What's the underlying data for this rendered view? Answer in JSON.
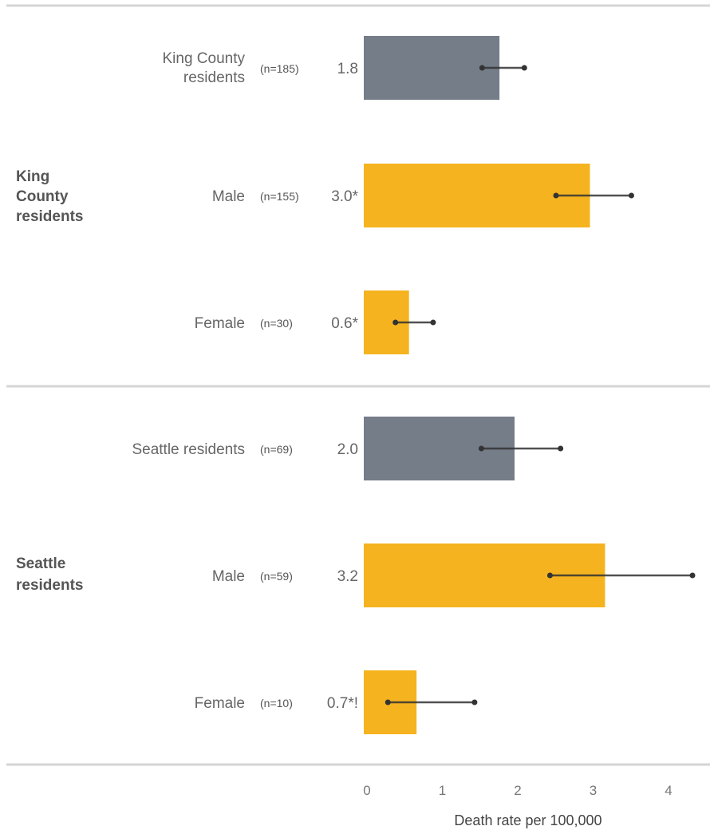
{
  "chart_data": {
    "type": "bar",
    "orientation": "horizontal",
    "xlabel": "Death rate per 100,000",
    "xlim": [
      0,
      4.4
    ],
    "xticks": [
      0,
      1,
      2,
      3,
      4
    ],
    "grid": false,
    "colors": {
      "total": "#757d89",
      "subgroup": "#f5b31f",
      "error_bar": "#333333",
      "separator": "#d5d5d5"
    },
    "groups": [
      {
        "label": "King County residents",
        "bars": [
          {
            "category": "King County residents",
            "n": "(n=185)",
            "value": 1.8,
            "value_label": "1.8",
            "ci": [
              1.57,
              2.13
            ],
            "kind": "total"
          },
          {
            "category": "Male",
            "n": "(n=155)",
            "value": 3.0,
            "value_label": "3.0*",
            "ci": [
              2.55,
              3.55
            ],
            "kind": "subgroup"
          },
          {
            "category": "Female",
            "n": "(n=30)",
            "value": 0.6,
            "value_label": "0.6*",
            "ci": [
              0.42,
              0.92
            ],
            "kind": "subgroup"
          }
        ]
      },
      {
        "label": "Seattle residents",
        "bars": [
          {
            "category": "Seattle residents",
            "n": "(n=69)",
            "value": 2.0,
            "value_label": "2.0",
            "ci": [
              1.56,
              2.61
            ],
            "kind": "total"
          },
          {
            "category": "Male",
            "n": "(n=59)",
            "value": 3.2,
            "value_label": "3.2",
            "ci": [
              2.47,
              4.36
            ],
            "kind": "subgroup"
          },
          {
            "category": "Female",
            "n": "(n=10)",
            "value": 0.7,
            "value_label": "0.7*!",
            "ci": [
              0.32,
              1.47
            ],
            "kind": "subgroup"
          }
        ]
      }
    ]
  }
}
